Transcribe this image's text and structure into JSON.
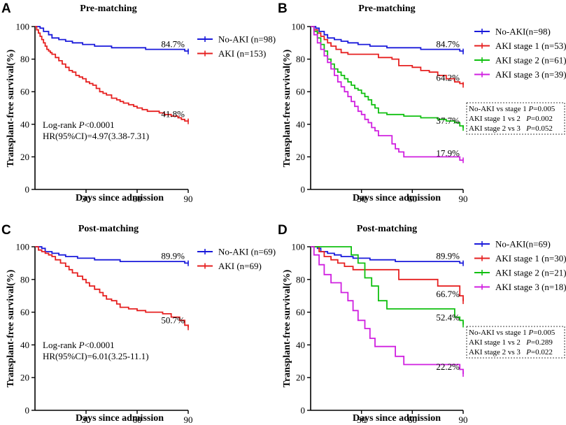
{
  "chart_data": [
    {
      "panel": "A",
      "type": "line",
      "title": "Pre-matching",
      "xlabel": "Days since admission",
      "ylabel": "Transplant-free survival(%)",
      "xlim": [
        0,
        90
      ],
      "ylim": [
        0,
        100
      ],
      "xticks": [
        "30",
        "60",
        "90"
      ],
      "yticks": [
        "0",
        "20",
        "40",
        "60",
        "80",
        "100"
      ],
      "legend_position": "top-right",
      "series": [
        {
          "name": "No-AKI (n=98)",
          "color": "#1a1adb",
          "x": [
            0,
            3,
            5,
            8,
            10,
            14,
            18,
            22,
            28,
            35,
            45,
            55,
            65,
            75,
            88,
            90
          ],
          "y": [
            100,
            99,
            97,
            95,
            93,
            92,
            91,
            90,
            89,
            88,
            87,
            87,
            86,
            86,
            85,
            84.7
          ],
          "end_label": "84.7%"
        },
        {
          "name": "AKI (n=153)",
          "color": "#e62020",
          "x": [
            0,
            1,
            2,
            3,
            4,
            5,
            6,
            7,
            8,
            9,
            10,
            12,
            14,
            16,
            18,
            20,
            22,
            24,
            26,
            28,
            30,
            32,
            34,
            36,
            38,
            40,
            42,
            45,
            48,
            50,
            52,
            55,
            58,
            60,
            63,
            66,
            70,
            73,
            76,
            80,
            84,
            86,
            88,
            89,
            90
          ],
          "y": [
            100,
            98,
            96,
            94,
            92,
            90,
            88,
            86,
            85,
            84,
            83,
            81,
            79,
            77,
            75,
            73,
            72,
            70,
            69,
            68,
            66,
            65,
            64,
            62,
            60,
            59,
            58,
            56,
            55,
            54,
            53,
            52,
            51,
            50,
            49,
            48,
            48,
            47,
            46,
            45,
            44,
            43,
            42,
            42,
            41.8
          ],
          "end_label": "41.8%"
        }
      ],
      "annotations": {
        "logrank_prefix": "Log-rank ",
        "logrank_p": "P",
        "logrank_value": "<0.0001",
        "hr": "HR(95%CI)=4.97(3.38-7.31)"
      }
    },
    {
      "panel": "B",
      "type": "line",
      "title": "Pre-matching",
      "xlabel": "Days since admission",
      "ylabel": "Transplant-free survival(%)",
      "xlim": [
        0,
        90
      ],
      "ylim": [
        0,
        100
      ],
      "xticks": [
        "30",
        "60",
        "90"
      ],
      "yticks": [
        "0",
        "20",
        "40",
        "60",
        "80",
        "100"
      ],
      "legend_position": "top-right",
      "series": [
        {
          "name": "No-AKI(n=98)",
          "color": "#1a1adb",
          "x": [
            0,
            3,
            5,
            8,
            10,
            14,
            18,
            22,
            28,
            35,
            45,
            55,
            65,
            75,
            88,
            90
          ],
          "y": [
            100,
            99,
            97,
            95,
            93,
            92,
            91,
            90,
            89,
            88,
            87,
            87,
            86,
            86,
            85,
            84.7
          ],
          "end_label": "84.7%"
        },
        {
          "name": "AKI stage 1 (n=53)",
          "color": "#e62020",
          "x": [
            0,
            2,
            4,
            6,
            8,
            10,
            12,
            15,
            18,
            22,
            30,
            40,
            48,
            52,
            60,
            65,
            70,
            75,
            80,
            85,
            88,
            90
          ],
          "y": [
            100,
            98,
            96,
            94,
            92,
            90,
            88,
            86,
            84,
            83,
            83,
            81,
            80,
            76,
            75,
            73,
            72,
            70,
            68,
            66,
            65,
            64.2
          ],
          "end_label": "64.2%"
        },
        {
          "name": "AKI stage 2 (n=61)",
          "color": "#10c010",
          "x": [
            0,
            2,
            4,
            6,
            8,
            10,
            12,
            14,
            16,
            18,
            20,
            22,
            24,
            26,
            28,
            30,
            32,
            34,
            36,
            38,
            40,
            45,
            50,
            55,
            60,
            65,
            70,
            75,
            80,
            85,
            88,
            90
          ],
          "y": [
            100,
            97,
            93,
            89,
            85,
            80,
            77,
            74,
            72,
            70,
            68,
            66,
            64,
            62,
            61,
            59,
            57,
            55,
            52,
            50,
            47,
            46,
            46,
            45,
            45,
            44,
            44,
            43,
            42,
            41,
            39,
            37.7
          ],
          "end_label": "37.7%"
        },
        {
          "name": "AKI stage 3 (n=39)",
          "color": "#d020e0",
          "x": [
            0,
            2,
            4,
            6,
            8,
            10,
            12,
            14,
            16,
            18,
            20,
            22,
            24,
            26,
            28,
            30,
            32,
            34,
            36,
            38,
            40,
            42,
            45,
            48,
            50,
            52,
            55,
            60,
            70,
            80,
            88,
            90
          ],
          "y": [
            100,
            95,
            90,
            86,
            82,
            78,
            74,
            70,
            66,
            63,
            60,
            57,
            54,
            51,
            48,
            46,
            43,
            41,
            38,
            36,
            33,
            33,
            33,
            28,
            25,
            23,
            20,
            20,
            20,
            20,
            18,
            17.9
          ],
          "end_label": "17.9%"
        }
      ],
      "annotations": {
        "stats": [
          {
            "label": "No-AKI vs stage 1 ",
            "p": "P",
            "value": "=0.005"
          },
          {
            "label": "AKI stage 1 vs 2   ",
            "p": "P",
            "value": "=0.002"
          },
          {
            "label": "AKI stage 2 vs 3   ",
            "p": "P",
            "value": "=0.052"
          }
        ]
      }
    },
    {
      "panel": "C",
      "type": "line",
      "title": "Post-matching",
      "xlabel": "Days since admission",
      "ylabel": "Transplant-free survival(%)",
      "xlim": [
        0,
        90
      ],
      "ylim": [
        0,
        100
      ],
      "xticks": [
        "30",
        "60",
        "90"
      ],
      "yticks": [
        "0",
        "20",
        "40",
        "60",
        "80",
        "100"
      ],
      "legend_position": "top-right",
      "series": [
        {
          "name": "No-AKI (n=69)",
          "color": "#1a1adb",
          "x": [
            0,
            4,
            6,
            10,
            14,
            18,
            25,
            35,
            50,
            70,
            88,
            90
          ],
          "y": [
            100,
            99,
            97,
            96,
            95,
            94,
            93,
            92,
            91,
            91,
            90,
            89.9
          ],
          "end_label": "89.9%"
        },
        {
          "name": "AKI (n=69)",
          "color": "#e62020",
          "x": [
            0,
            2,
            4,
            6,
            8,
            10,
            12,
            15,
            18,
            20,
            22,
            25,
            28,
            30,
            32,
            35,
            38,
            40,
            42,
            45,
            48,
            50,
            55,
            60,
            65,
            70,
            75,
            80,
            85,
            88,
            90
          ],
          "y": [
            100,
            98,
            97,
            96,
            95,
            94,
            92,
            90,
            88,
            86,
            84,
            82,
            80,
            78,
            76,
            74,
            72,
            70,
            68,
            67,
            65,
            63,
            62,
            61,
            60,
            60,
            59,
            57,
            55,
            52,
            50.7
          ],
          "end_label": "50.7%"
        }
      ],
      "annotations": {
        "logrank_prefix": "Log-rank ",
        "logrank_p": "P",
        "logrank_value": "<0.0001",
        "hr": "HR(95%CI)=6.01(3.25-11.1)"
      }
    },
    {
      "panel": "D",
      "type": "line",
      "title": "Post-matching",
      "xlabel": "Days since admission",
      "ylabel": "Transplant-free survival(%)",
      "xlim": [
        0,
        90
      ],
      "ylim": [
        0,
        100
      ],
      "xticks": [
        "30",
        "60",
        "90"
      ],
      "yticks": [
        "0",
        "20",
        "40",
        "60",
        "80",
        "100"
      ],
      "legend_position": "top-right",
      "series": [
        {
          "name": "No-AKI(n=69)",
          "color": "#1a1adb",
          "x": [
            0,
            4,
            6,
            10,
            14,
            18,
            25,
            35,
            50,
            70,
            88,
            90
          ],
          "y": [
            100,
            99,
            97,
            96,
            95,
            94,
            93,
            92,
            91,
            91,
            90,
            89.9
          ],
          "end_label": "89.9%"
        },
        {
          "name": "AKI stage 1 (n=30)",
          "color": "#e62020",
          "x": [
            0,
            5,
            8,
            12,
            16,
            20,
            25,
            45,
            52,
            70,
            75,
            85,
            88,
            90
          ],
          "y": [
            100,
            97,
            94,
            92,
            90,
            88,
            86,
            86,
            80,
            80,
            76,
            76,
            70,
            66.7
          ],
          "end_label": "66.7%"
        },
        {
          "name": "AKI stage 2 (n=21)",
          "color": "#10c010",
          "x": [
            0,
            20,
            24,
            28,
            32,
            36,
            40,
            45,
            55,
            70,
            85,
            88,
            90
          ],
          "y": [
            100,
            100,
            95,
            90,
            81,
            76,
            67,
            62,
            62,
            62,
            57,
            55,
            52.4
          ],
          "end_label": "52.4%"
        },
        {
          "name": "AKI stage 3 (n=18)",
          "color": "#d020e0",
          "x": [
            0,
            2,
            5,
            8,
            12,
            15,
            18,
            22,
            25,
            28,
            32,
            35,
            38,
            42,
            45,
            50,
            55,
            60,
            70,
            80,
            88,
            90
          ],
          "y": [
            100,
            95,
            89,
            83,
            78,
            78,
            72,
            67,
            61,
            55,
            50,
            44,
            39,
            39,
            39,
            33,
            28,
            28,
            28,
            28,
            25,
            22.2
          ],
          "end_label": "22.2%"
        }
      ],
      "annotations": {
        "stats": [
          {
            "label": "No-AKI vs stage 1 ",
            "p": "P",
            "value": "=0.005"
          },
          {
            "label": "AKI stage 1 vs 2   ",
            "p": "P",
            "value": "=0.289"
          },
          {
            "label": "AKI stage 2 vs 3   ",
            "p": "P",
            "value": "=0.022"
          }
        ]
      }
    }
  ]
}
